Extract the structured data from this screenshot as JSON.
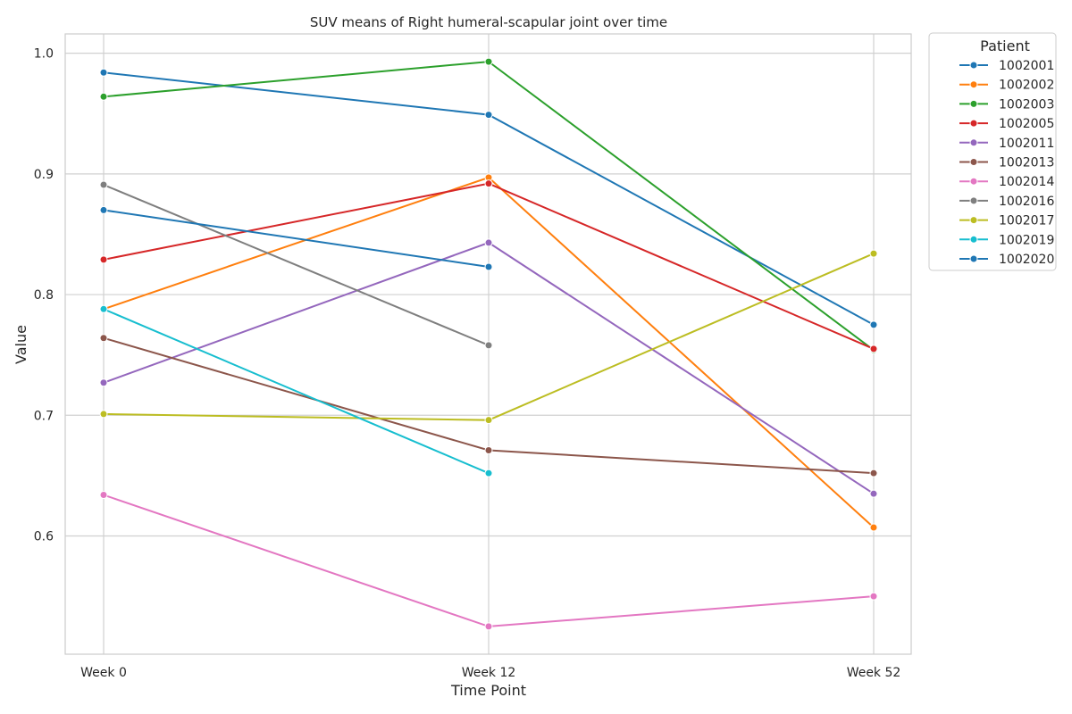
{
  "chart_data": {
    "type": "line",
    "title": "SUV means of Right humeral-scapular joint over time",
    "xlabel": "Time Point",
    "ylabel": "Value",
    "categories": [
      "Week 0",
      "Week 12",
      "Week 52"
    ],
    "yticks": [
      "0.6",
      "0.7",
      "0.8",
      "0.9",
      "1.0"
    ],
    "ylim": [
      0.502,
      1.016
    ],
    "grid": true,
    "legend": {
      "title": "Patient",
      "placement": "outside-right-top"
    },
    "series": [
      {
        "name": "1002001",
        "color": "#1f77b4",
        "values": [
          0.984,
          0.949,
          0.775
        ]
      },
      {
        "name": "1002002",
        "color": "#ff7f0e",
        "values": [
          0.788,
          0.897,
          0.607
        ]
      },
      {
        "name": "1002003",
        "color": "#2ca02c",
        "values": [
          0.964,
          0.993,
          0.754
        ]
      },
      {
        "name": "1002005",
        "color": "#d62728",
        "values": [
          0.829,
          0.892,
          0.755
        ]
      },
      {
        "name": "1002011",
        "color": "#9467bd",
        "values": [
          0.727,
          0.843,
          0.635
        ]
      },
      {
        "name": "1002013",
        "color": "#8c564b",
        "values": [
          0.764,
          0.671,
          0.652
        ]
      },
      {
        "name": "1002014",
        "color": "#e377c2",
        "values": [
          0.634,
          0.525,
          0.55
        ]
      },
      {
        "name": "1002016",
        "color": "#7f7f7f",
        "values": [
          0.891,
          0.758,
          null
        ]
      },
      {
        "name": "1002017",
        "color": "#bcbd22",
        "values": [
          0.701,
          0.696,
          0.834
        ]
      },
      {
        "name": "1002019",
        "color": "#17becf",
        "values": [
          0.788,
          0.652,
          null
        ]
      },
      {
        "name": "1002020",
        "color": "#1f77b4",
        "values": [
          0.87,
          0.823,
          null
        ]
      }
    ]
  }
}
